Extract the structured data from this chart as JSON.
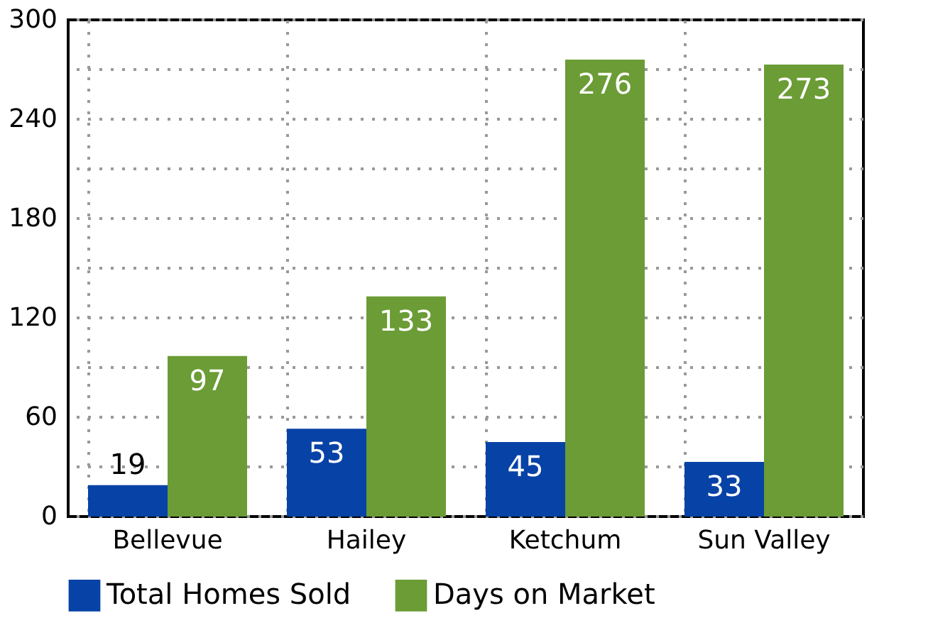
{
  "chart_data": {
    "type": "bar",
    "categories": [
      "Bellevue",
      "Hailey",
      "Ketchum",
      "Sun Valley"
    ],
    "series": [
      {
        "name": "Total Homes Sold",
        "color": "#0742a6",
        "values": [
          19,
          53,
          45,
          33
        ]
      },
      {
        "name": "Days on Market",
        "color": "#6b9c35",
        "values": [
          97,
          133,
          276,
          273
        ]
      }
    ],
    "ylim": [
      0,
      300
    ],
    "yticks": [
      0,
      {
        "value": 30,
        "label": null
      },
      60,
      {
        "value": 90,
        "label": null
      },
      120,
      {
        "value": 150,
        "label": null
      },
      180,
      {
        "value": 210,
        "label": null
      },
      240,
      {
        "value": 270,
        "label": null
      },
      300
    ],
    "grid": true,
    "legend": "bottom",
    "data_labels": true
  }
}
